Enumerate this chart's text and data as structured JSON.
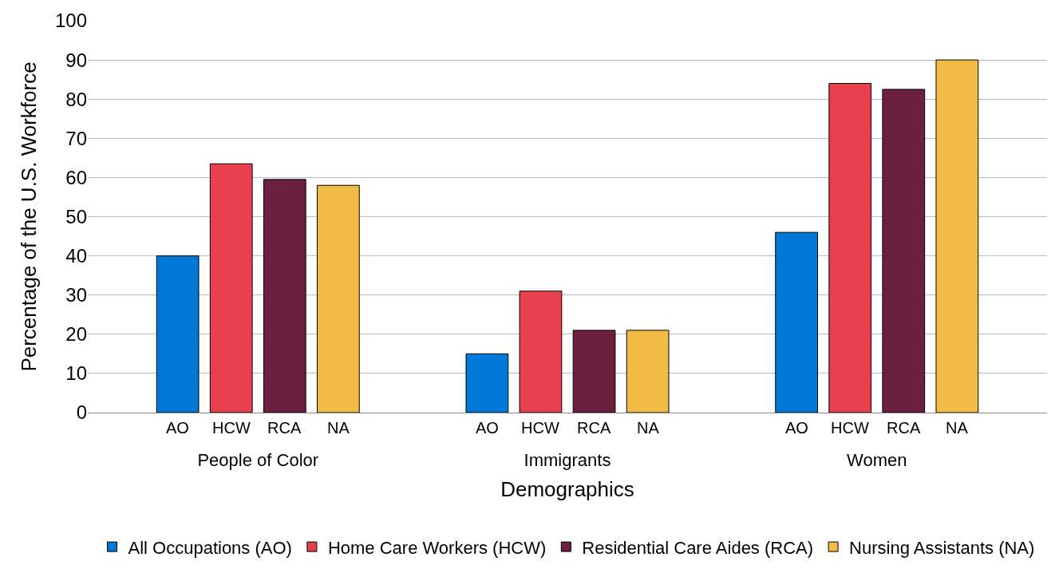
{
  "chart_data": {
    "type": "bar",
    "xlabel": "Demographics",
    "ylabel": "Percentage of the U.S. Workforce",
    "categories": [
      "People of Color",
      "Immigrants",
      "Women"
    ],
    "series": [
      {
        "name": "All Occupations (AO)",
        "color": "#0078d7",
        "values": [
          40,
          15,
          46
        ]
      },
      {
        "name": "Home Care Workers (HCW)",
        "color": "#e8404f",
        "values": [
          63.5,
          31,
          84
        ]
      },
      {
        "name": "Residential Care Aides (RCA)",
        "color": "#6b2040",
        "values": [
          59.5,
          21,
          82.5
        ]
      },
      {
        "name": "Nursing Assistants (NA)",
        "color": "#f2bb45",
        "values": [
          58,
          21,
          90
        ]
      }
    ],
    "annotations": [
      "AO",
      "HCW",
      "RCA",
      "NA"
    ],
    "ylim": [
      0,
      100
    ],
    "yticks": [
      0,
      10,
      20,
      30,
      40,
      50,
      60,
      70,
      80,
      90,
      100
    ],
    "grid": "y",
    "legend": "bottom"
  }
}
